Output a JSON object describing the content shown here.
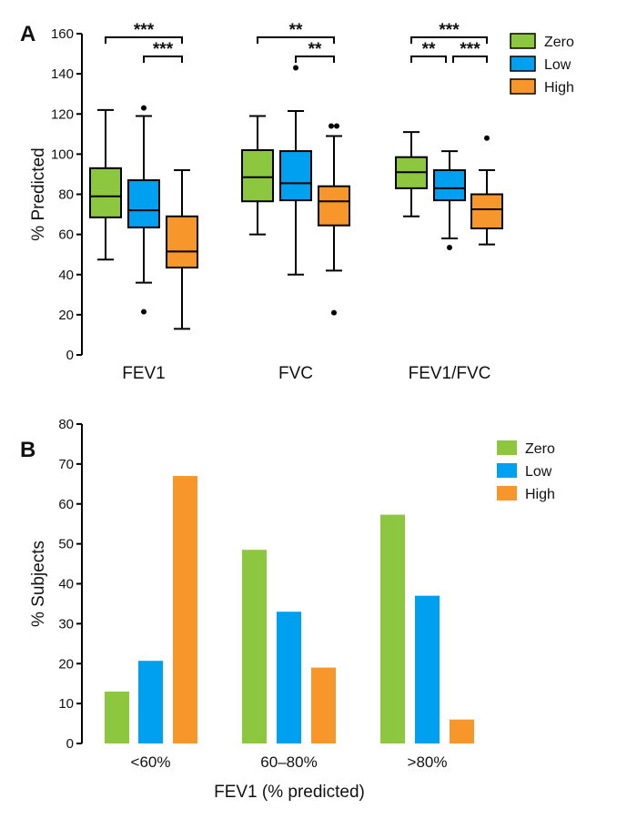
{
  "chart_data": [
    {
      "panel_label": "A",
      "type": "box",
      "ylabel": "% Predicted",
      "ylim": [
        0,
        160
      ],
      "yticks": [
        0,
        20,
        40,
        60,
        80,
        100,
        120,
        140,
        160
      ],
      "grid": false,
      "legend_placement": "top-right",
      "categories": [
        "FEV1",
        "FVC",
        "FEV1/FVC"
      ],
      "series": [
        {
          "name": "Zero",
          "color": "#8dc63f",
          "boxes": [
            {
              "min": 47.5,
              "q1": 68.5,
              "median": 79,
              "q3": 93,
              "max": 122,
              "outliers": []
            },
            {
              "min": 60,
              "q1": 76.5,
              "median": 88.5,
              "q3": 102,
              "max": 119,
              "outliers": []
            },
            {
              "min": 69,
              "q1": 83,
              "median": 91,
              "q3": 98.5,
              "max": 111,
              "outliers": []
            }
          ]
        },
        {
          "name": "Low",
          "color": "#00a0f0",
          "boxes": [
            {
              "min": 36,
              "q1": 63.5,
              "median": 72,
              "q3": 87,
              "max": 119,
              "outliers": [
                123,
                21.5
              ]
            },
            {
              "min": 40,
              "q1": 77,
              "median": 85.5,
              "q3": 101.5,
              "max": 121.5,
              "outliers": [
                143
              ]
            },
            {
              "min": 58,
              "q1": 77,
              "median": 83,
              "q3": 92,
              "max": 101.5,
              "outliers": [
                53.5
              ]
            }
          ]
        },
        {
          "name": "High",
          "color": "#f7962b",
          "boxes": [
            {
              "min": 13,
              "q1": 43.5,
              "median": 51.5,
              "q3": 69,
              "max": 92,
              "outliers": []
            },
            {
              "min": 42,
              "q1": 64.5,
              "median": 76.5,
              "q3": 84,
              "max": 109,
              "outliers": [
                114,
                114,
                21
              ]
            },
            {
              "min": 55,
              "q1": 63,
              "median": 72.5,
              "q3": 80,
              "max": 92,
              "outliers": [
                108
              ]
            }
          ]
        }
      ],
      "significance": [
        {
          "category": 0,
          "from": "Zero",
          "to": "High",
          "label": "***",
          "level": 0
        },
        {
          "category": 0,
          "from": "Low",
          "to": "High",
          "label": "***",
          "level": 1
        },
        {
          "category": 1,
          "from": "Zero",
          "to": "High",
          "label": "**",
          "level": 0
        },
        {
          "category": 1,
          "from": "Low",
          "to": "High",
          "label": "**",
          "level": 1
        },
        {
          "category": 2,
          "from": "Zero",
          "to": "High",
          "label": "***",
          "level": 0
        },
        {
          "category": 2,
          "from": "Zero",
          "to": "Low",
          "label": "**",
          "level": 1
        },
        {
          "category": 2,
          "from": "Low",
          "to": "High",
          "label": "***",
          "level": 1
        }
      ]
    },
    {
      "panel_label": "B",
      "type": "bar",
      "xlabel": "FEV1 (% predicted)",
      "ylabel": "% Subjects",
      "ylim": [
        0,
        80
      ],
      "yticks": [
        0,
        10,
        20,
        30,
        40,
        50,
        60,
        70,
        80
      ],
      "grid": false,
      "legend_placement": "top-right",
      "categories": [
        "<60%",
        "60–80%",
        ">80%"
      ],
      "series": [
        {
          "name": "Zero",
          "color": "#8dc63f",
          "values": [
            13,
            48.5,
            57.3
          ]
        },
        {
          "name": "Low",
          "color": "#00a0f0",
          "values": [
            20.7,
            33,
            37
          ]
        },
        {
          "name": "High",
          "color": "#f7962b",
          "values": [
            67,
            19,
            6
          ]
        }
      ]
    }
  ]
}
